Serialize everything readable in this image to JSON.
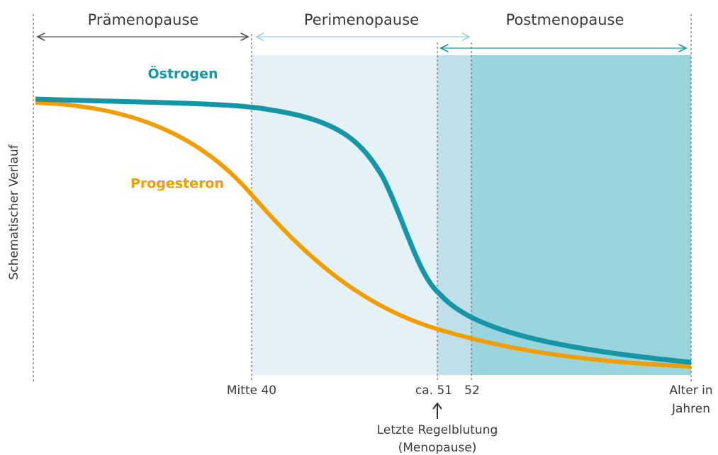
{
  "phases": [
    "Prämenopause",
    "Perimenopause",
    "Postmenopause"
  ],
  "curves": [
    "Östrogen",
    "Progesteron"
  ],
  "y_axis_label": "Schematischer Verlauf",
  "x_labels": [
    "Mitte 40",
    "ca. 51",
    "52"
  ],
  "x_axis_label": [
    "Alter in",
    "Jahren"
  ],
  "annotation": [
    "Letzte Regelblutung",
    "(Menopause)"
  ]
}
